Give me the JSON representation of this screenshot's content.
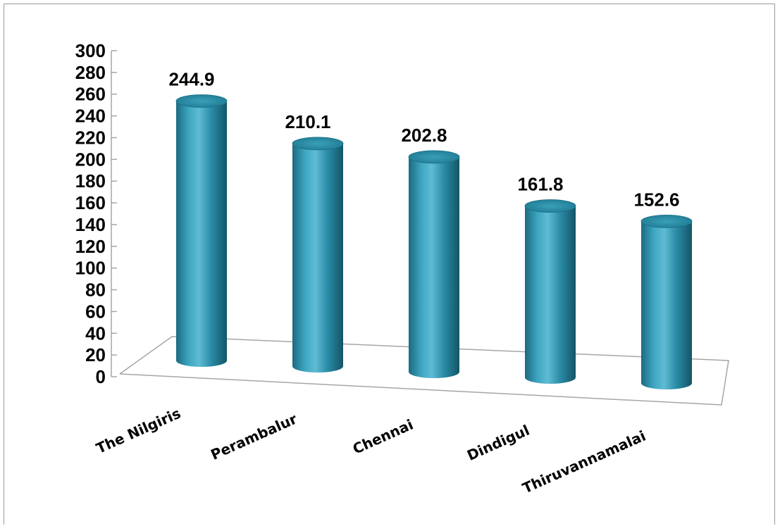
{
  "chart_data": {
    "type": "bar",
    "style": "3d-cylinder",
    "categories": [
      "The Nilgiris",
      "Perambalur",
      "Chennai",
      "Dindigul",
      "Thiruvannamalai"
    ],
    "values": [
      244.9,
      210.1,
      202.8,
      161.8,
      152.6
    ],
    "data_labels": [
      "244.9",
      "210.1",
      "202.8",
      "161.8",
      "152.6"
    ],
    "y_ticks": [
      "0",
      "20",
      "40",
      "60",
      "80",
      "100",
      "120",
      "140",
      "160",
      "180",
      "200",
      "220",
      "240",
      "260",
      "280",
      "300"
    ],
    "ylim": [
      0,
      300
    ],
    "title": "",
    "xlabel": "",
    "ylabel": "",
    "grid": false,
    "legend": "none",
    "colors": {
      "bar": "#2a8aa6",
      "bar_dark": "#0f5468",
      "bar_light": "#6cc3d9",
      "axis": "#a6a6a6"
    }
  }
}
